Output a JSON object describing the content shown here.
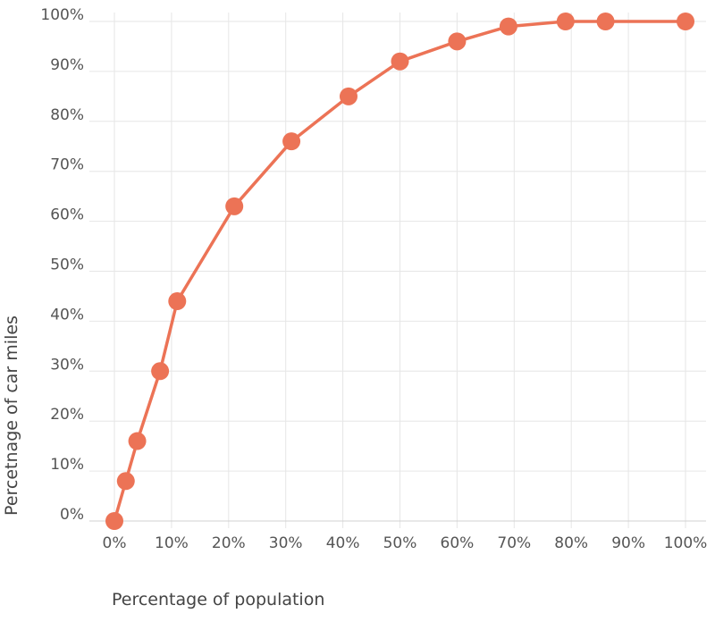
{
  "chart_data": {
    "type": "line",
    "title": "",
    "xlabel": "Percentage of population",
    "ylabel": "Percetnage of car miles",
    "x_unit": "%",
    "y_unit": "%",
    "xlim": [
      0,
      100
    ],
    "ylim": [
      0,
      100
    ],
    "x_ticks": [
      "0%",
      "10%",
      "20%",
      "30%",
      "40%",
      "50%",
      "60%",
      "70%",
      "80%",
      "90%",
      "100%"
    ],
    "y_ticks": [
      "0%",
      "10%",
      "20%",
      "30%",
      "40%",
      "50%",
      "60%",
      "70%",
      "80%",
      "90%",
      "100%"
    ],
    "grid": true,
    "legend": "none",
    "series": [
      {
        "color": "#ec7356",
        "points": [
          {
            "x": 0,
            "y": 0
          },
          {
            "x": 2,
            "y": 8
          },
          {
            "x": 4,
            "y": 16
          },
          {
            "x": 8,
            "y": 30
          },
          {
            "x": 11,
            "y": 44
          },
          {
            "x": 21,
            "y": 63
          },
          {
            "x": 31,
            "y": 76
          },
          {
            "x": 41,
            "y": 85
          },
          {
            "x": 50,
            "y": 92
          },
          {
            "x": 60,
            "y": 96
          },
          {
            "x": 69,
            "y": 99
          },
          {
            "x": 79,
            "y": 100
          },
          {
            "x": 86,
            "y": 100
          },
          {
            "x": 100,
            "y": 100
          }
        ]
      }
    ]
  }
}
